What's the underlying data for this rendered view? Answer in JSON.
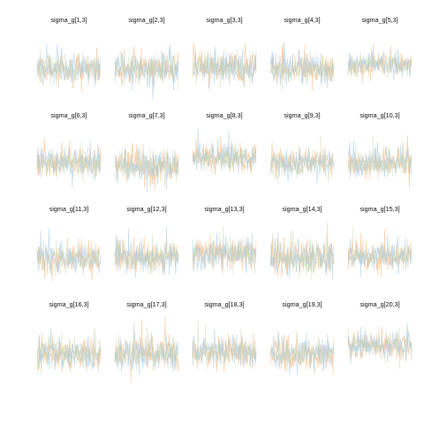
{
  "chart_data": {
    "type": "line",
    "description_kind": "MCMC trace plots (overlaid chains)",
    "grid": false,
    "axes_visible": false,
    "legend": "none",
    "colors": [
      "#f6c08d",
      "#aecde6",
      "#c8d4b0"
    ],
    "panels": [
      {
        "title": "sigma_g[1,3]",
        "center": 0.5,
        "spread": 0.3
      },
      {
        "title": "sigma_g[2,3]",
        "center": 0.5,
        "spread": 0.32
      },
      {
        "title": "sigma_g[3,3]",
        "center": 0.52,
        "spread": 0.3
      },
      {
        "title": "sigma_g[4,3]",
        "center": 0.5,
        "spread": 0.3
      },
      {
        "title": "sigma_g[5,3]",
        "center": 0.56,
        "spread": 0.22
      },
      {
        "title": "sigma_g[6,3]",
        "center": 0.52,
        "spread": 0.3
      },
      {
        "title": "sigma_g[7,3]",
        "center": 0.48,
        "spread": 0.32
      },
      {
        "title": "sigma_g[8,3]",
        "center": 0.58,
        "spread": 0.26
      },
      {
        "title": "sigma_g[9,3]",
        "center": 0.52,
        "spread": 0.28
      },
      {
        "title": "sigma_g[10,3]",
        "center": 0.52,
        "spread": 0.28
      },
      {
        "title": "sigma_g[11,3]",
        "center": 0.5,
        "spread": 0.3
      },
      {
        "title": "sigma_g[12,3]",
        "center": 0.52,
        "spread": 0.3
      },
      {
        "title": "sigma_g[13,3]",
        "center": 0.55,
        "spread": 0.3
      },
      {
        "title": "sigma_g[14,3]",
        "center": 0.5,
        "spread": 0.32
      },
      {
        "title": "sigma_g[15,3]",
        "center": 0.52,
        "spread": 0.28
      },
      {
        "title": "sigma_g[16,3]",
        "center": 0.5,
        "spread": 0.32
      },
      {
        "title": "sigma_g[17,3]",
        "center": 0.5,
        "spread": 0.32
      },
      {
        "title": "sigma_g[18,3]",
        "center": 0.52,
        "spread": 0.3
      },
      {
        "title": "sigma_g[19,3]",
        "center": 0.5,
        "spread": 0.32
      },
      {
        "title": "sigma_g[20,3]",
        "center": 0.6,
        "spread": 0.26
      }
    ]
  }
}
